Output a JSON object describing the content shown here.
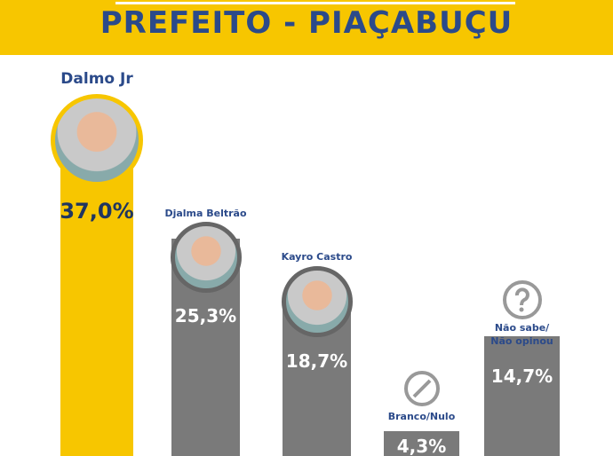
{
  "chart_data": {
    "type": "bar",
    "title": "PREFEITO - PIAÇABUÇU",
    "categories": [
      "Dalmo Jr",
      "Djalma Beltrão",
      "Kayro Castro",
      "Branco/Nulo",
      "Não sabe/ Não opinou"
    ],
    "values": [
      37.0,
      25.3,
      18.7,
      4.3,
      14.7
    ],
    "value_labels": [
      "37,0%",
      "25,3%",
      "18,7%",
      "4,3%",
      "14,7%"
    ],
    "colors": [
      "#f7c600",
      "#7a7a7a",
      "#7a7a7a",
      "#7a7a7a",
      "#7a7a7a"
    ]
  }
}
